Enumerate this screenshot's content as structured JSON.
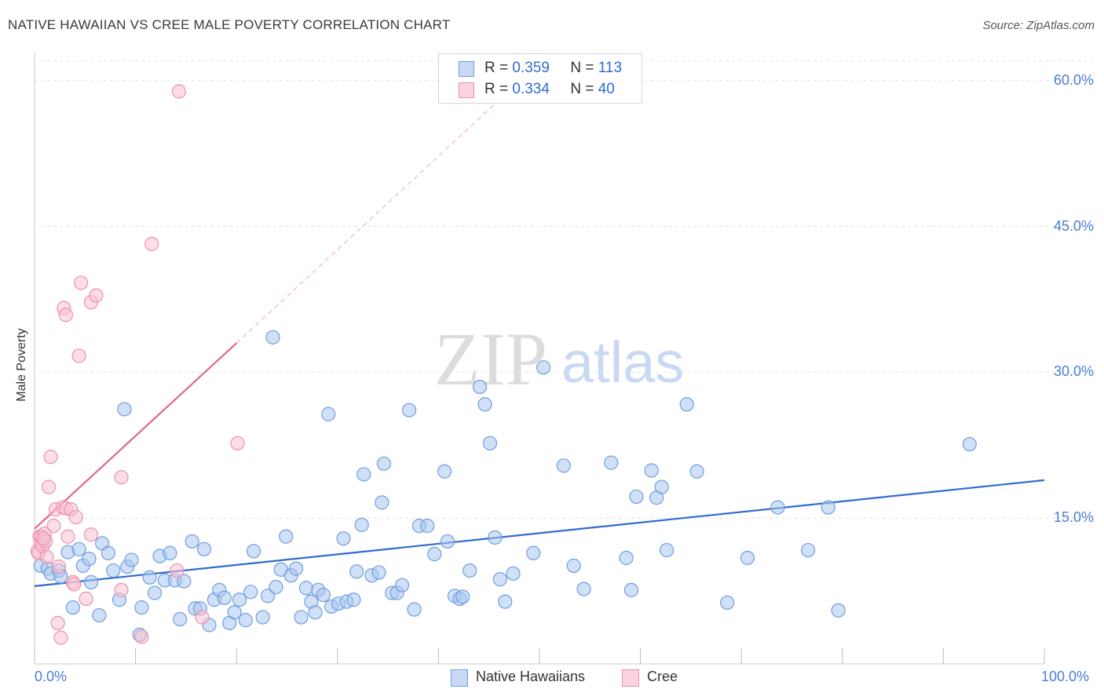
{
  "title": "NATIVE HAWAIIAN VS CREE MALE POVERTY CORRELATION CHART",
  "source": "Source: ZipAtlas.com",
  "watermark": {
    "zip": "ZIP",
    "atlas": "atlas"
  },
  "stats": {
    "series1": {
      "r_label": "R =",
      "r": "0.359",
      "n_label": "N =",
      "n": "113"
    },
    "series2": {
      "r_label": "R =",
      "r": "0.334",
      "n_label": "N =",
      "n": "40"
    }
  },
  "legend": {
    "series1": "Native Hawaiians",
    "series2": "Cree"
  },
  "colors": {
    "blue_fill": "#a9c6ef",
    "blue_stroke": "#6f9ee0",
    "blue_line": "#2f6bd0",
    "pink_fill": "#f7c2d2",
    "pink_stroke": "#ee8fae",
    "pink_line": "#e0668f",
    "grid": "#e2e2e2",
    "axis_text": "#4a7cd4"
  },
  "chart_data": {
    "type": "scatter",
    "title": "NATIVE HAWAIIAN VS CREE MALE POVERTY CORRELATION CHART",
    "xlabel": "",
    "ylabel": "Male Poverty",
    "xlim": [
      0,
      100
    ],
    "ylim": [
      0,
      62
    ],
    "x_tick_labels": [
      "0.0%",
      "100.0%"
    ],
    "y_ticks": [
      15,
      30,
      45,
      60
    ],
    "y_tick_labels": [
      "15.0%",
      "30.0%",
      "45.0%",
      "60.0%"
    ],
    "grid": true,
    "series": [
      {
        "name": "Native Hawaiians",
        "r": 0.359,
        "n": 113,
        "trend": {
          "x0": 0,
          "y0": 8.0,
          "x1": 100,
          "y1": 18.9
        },
        "points": [
          [
            0.6,
            10.1
          ],
          [
            1.3,
            9.8
          ],
          [
            1.6,
            9.3
          ],
          [
            2.4,
            9.6
          ],
          [
            2.6,
            9.0
          ],
          [
            3.3,
            11.5
          ],
          [
            3.8,
            5.8
          ],
          [
            4.4,
            11.8
          ],
          [
            4.8,
            10.1
          ],
          [
            5.4,
            10.8
          ],
          [
            5.6,
            8.4
          ],
          [
            6.4,
            5.0
          ],
          [
            6.7,
            12.4
          ],
          [
            7.3,
            11.4
          ],
          [
            7.8,
            9.6
          ],
          [
            8.4,
            6.6
          ],
          [
            8.9,
            26.2
          ],
          [
            9.2,
            10.0
          ],
          [
            9.6,
            10.7
          ],
          [
            10.4,
            3.0
          ],
          [
            10.6,
            5.8
          ],
          [
            11.4,
            8.9
          ],
          [
            11.9,
            7.3
          ],
          [
            12.4,
            11.1
          ],
          [
            12.9,
            8.6
          ],
          [
            13.4,
            11.4
          ],
          [
            13.9,
            8.6
          ],
          [
            14.4,
            4.6
          ],
          [
            14.8,
            8.5
          ],
          [
            15.6,
            12.6
          ],
          [
            15.9,
            5.7
          ],
          [
            16.4,
            5.7
          ],
          [
            16.8,
            11.8
          ],
          [
            17.3,
            4.0
          ],
          [
            17.8,
            6.6
          ],
          [
            18.3,
            7.6
          ],
          [
            18.8,
            6.8
          ],
          [
            19.3,
            4.2
          ],
          [
            19.8,
            5.3
          ],
          [
            20.3,
            6.6
          ],
          [
            20.9,
            4.5
          ],
          [
            21.4,
            7.4
          ],
          [
            21.7,
            11.6
          ],
          [
            22.6,
            4.8
          ],
          [
            23.1,
            7.0
          ],
          [
            23.6,
            33.6
          ],
          [
            23.9,
            7.9
          ],
          [
            24.4,
            9.7
          ],
          [
            24.9,
            13.1
          ],
          [
            25.4,
            9.1
          ],
          [
            25.9,
            9.8
          ],
          [
            26.4,
            4.8
          ],
          [
            26.9,
            7.8
          ],
          [
            27.4,
            6.4
          ],
          [
            27.8,
            5.3
          ],
          [
            28.1,
            7.6
          ],
          [
            28.6,
            7.1
          ],
          [
            29.1,
            25.7
          ],
          [
            29.4,
            5.9
          ],
          [
            30.1,
            6.2
          ],
          [
            30.6,
            12.9
          ],
          [
            30.9,
            6.4
          ],
          [
            31.6,
            6.6
          ],
          [
            31.9,
            9.5
          ],
          [
            32.4,
            14.3
          ],
          [
            32.6,
            19.5
          ],
          [
            33.4,
            9.1
          ],
          [
            34.1,
            9.4
          ],
          [
            34.4,
            16.6
          ],
          [
            34.6,
            20.6
          ],
          [
            35.4,
            7.3
          ],
          [
            35.9,
            7.3
          ],
          [
            36.4,
            8.1
          ],
          [
            37.1,
            26.1
          ],
          [
            37.6,
            5.6
          ],
          [
            38.1,
            14.2
          ],
          [
            38.9,
            14.2
          ],
          [
            39.6,
            11.3
          ],
          [
            40.6,
            19.8
          ],
          [
            40.9,
            12.6
          ],
          [
            41.6,
            7.0
          ],
          [
            42.1,
            6.7
          ],
          [
            42.4,
            6.9
          ],
          [
            43.1,
            9.6
          ],
          [
            44.1,
            28.5
          ],
          [
            44.6,
            26.7
          ],
          [
            45.1,
            22.7
          ],
          [
            45.6,
            13.0
          ],
          [
            46.1,
            8.7
          ],
          [
            46.6,
            6.4
          ],
          [
            47.4,
            9.3
          ],
          [
            49.4,
            11.4
          ],
          [
            50.4,
            30.5
          ],
          [
            52.4,
            20.4
          ],
          [
            53.4,
            10.1
          ],
          [
            54.4,
            7.7
          ],
          [
            57.1,
            20.7
          ],
          [
            58.6,
            10.9
          ],
          [
            59.1,
            7.6
          ],
          [
            59.6,
            17.2
          ],
          [
            61.1,
            19.9
          ],
          [
            61.6,
            17.1
          ],
          [
            62.1,
            18.2
          ],
          [
            62.6,
            11.7
          ],
          [
            64.6,
            26.7
          ],
          [
            65.6,
            19.8
          ],
          [
            68.6,
            6.3
          ],
          [
            70.6,
            10.9
          ],
          [
            73.6,
            16.1
          ],
          [
            76.6,
            11.7
          ],
          [
            78.6,
            16.1
          ],
          [
            79.6,
            5.5
          ],
          [
            92.6,
            22.6
          ]
        ]
      },
      {
        "name": "Cree",
        "r": 0.334,
        "n": 40,
        "trend": {
          "x0": 0,
          "y0": 13.9,
          "x1": 20,
          "y1": 33.0
        },
        "trend_extension": {
          "x0": 20,
          "y0": 33.0,
          "x1": 46,
          "y1": 58.0
        },
        "points": [
          [
            0.3,
            11.6
          ],
          [
            0.4,
            11.4
          ],
          [
            0.5,
            13.1
          ],
          [
            0.6,
            12.4
          ],
          [
            0.7,
            13.1
          ],
          [
            0.8,
            12.1
          ],
          [
            1.0,
            13.4
          ],
          [
            1.1,
            12.6
          ],
          [
            1.2,
            11.0
          ],
          [
            1.4,
            18.2
          ],
          [
            1.6,
            21.3
          ],
          [
            1.9,
            14.2
          ],
          [
            2.1,
            15.9
          ],
          [
            2.3,
            4.2
          ],
          [
            2.4,
            10.0
          ],
          [
            2.6,
            2.7
          ],
          [
            2.8,
            16.1
          ],
          [
            2.9,
            36.6
          ],
          [
            3.1,
            16.0
          ],
          [
            3.1,
            35.9
          ],
          [
            3.3,
            13.1
          ],
          [
            3.6,
            15.9
          ],
          [
            3.8,
            8.4
          ],
          [
            3.9,
            8.2
          ],
          [
            4.1,
            15.1
          ],
          [
            4.4,
            31.7
          ],
          [
            4.6,
            39.2
          ],
          [
            5.1,
            6.7
          ],
          [
            5.6,
            13.3
          ],
          [
            5.6,
            37.2
          ],
          [
            6.1,
            37.9
          ],
          [
            8.6,
            7.6
          ],
          [
            8.6,
            19.2
          ],
          [
            10.6,
            2.8
          ],
          [
            11.6,
            43.2
          ],
          [
            14.1,
            9.6
          ],
          [
            14.3,
            58.9
          ],
          [
            16.6,
            4.8
          ],
          [
            20.1,
            22.7
          ],
          [
            0.9,
            12.9
          ]
        ]
      }
    ]
  }
}
